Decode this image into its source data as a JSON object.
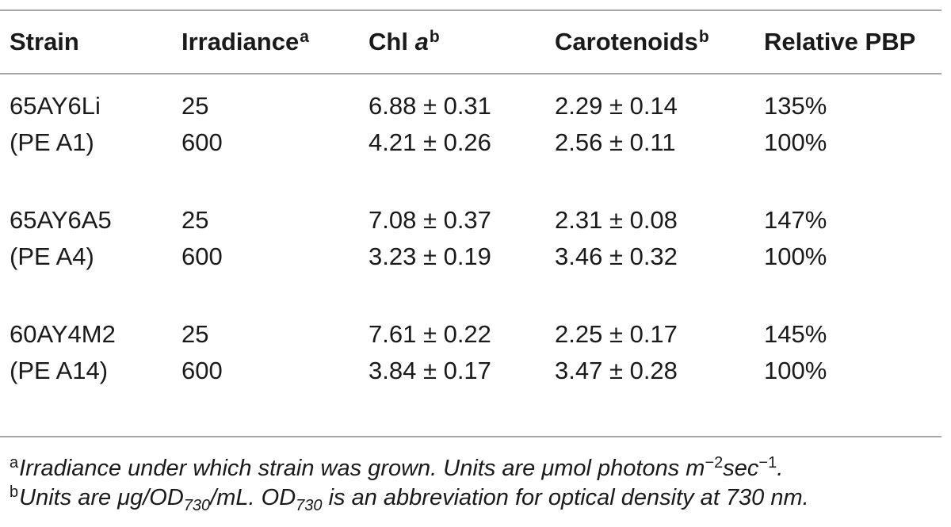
{
  "table": {
    "headers": {
      "strain": "Strain",
      "irradiance": "Irradiance",
      "irradiance_mark": "a",
      "chl_prefix": "Chl ",
      "chl_italic": "a",
      "chl_mark": "b",
      "carotenoids": "Carotenoids",
      "carotenoids_mark": "b",
      "relative_pbp": "Relative PBP"
    },
    "rows": [
      {
        "strain": "65AY6Li",
        "irradiance": "25",
        "chl": "6.88 ± 0.31",
        "carotenoids": "2.29 ± 0.14",
        "pbp": "135%"
      },
      {
        "strain": "(PE A1)",
        "irradiance": "600",
        "chl": "4.21 ± 0.26",
        "carotenoids": "2.56 ± 0.11",
        "pbp": "100%"
      },
      {
        "strain": "65AY6A5",
        "irradiance": "25",
        "chl": "7.08 ± 0.37",
        "carotenoids": "2.31 ± 0.08",
        "pbp": "147%"
      },
      {
        "strain": "(PE A4)",
        "irradiance": "600",
        "chl": "3.23 ± 0.19",
        "carotenoids": "3.46 ± 0.32",
        "pbp": "100%"
      },
      {
        "strain": "60AY4M2",
        "irradiance": "25",
        "chl": "7.61 ± 0.22",
        "carotenoids": "2.25 ± 0.17",
        "pbp": "145%"
      },
      {
        "strain": "(PE A14)",
        "irradiance": "600",
        "chl": "3.84 ± 0.17",
        "carotenoids": "3.47 ± 0.28",
        "pbp": "100%"
      }
    ]
  },
  "footnotes": {
    "a": {
      "mark": "a",
      "text_1": "Irradiance under which strain was grown. Units are μmol photons m",
      "exp_1": "−2",
      "text_2": "sec",
      "exp_2": "−1",
      "text_3": "."
    },
    "b": {
      "mark": "b",
      "text_1": "Units are μg/OD",
      "sub_1": "730",
      "text_2": "/mL. OD",
      "sub_2": "730",
      "text_3": " is an abbreviation for optical density at 730 nm."
    }
  }
}
